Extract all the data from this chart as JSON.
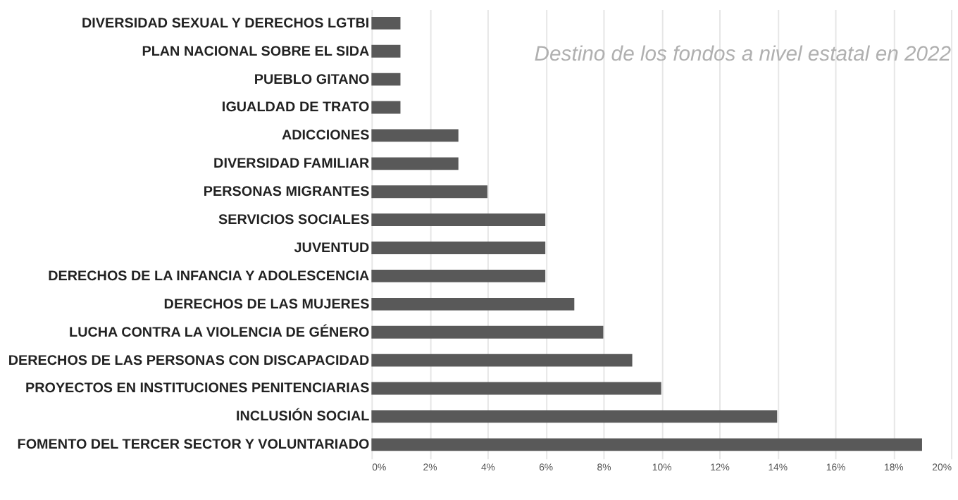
{
  "chart_data": {
    "type": "bar",
    "orientation": "horizontal",
    "title": "Destino de los fondos a nivel estatal en 2022",
    "categories": [
      "DIVERSIDAD SEXUAL Y DERECHOS LGTBI",
      "PLAN NACIONAL SOBRE EL SIDA",
      "PUEBLO GITANO",
      "IGUALDAD DE TRATO",
      "ADICCIONES",
      "DIVERSIDAD FAMILIAR",
      "PERSONAS MIGRANTES",
      "SERVICIOS SOCIALES",
      "JUVENTUD",
      "DERECHOS DE LA INFANCIA Y ADOLESCENCIA",
      "DERECHOS DE LAS MUJERES",
      "LUCHA CONTRA LA VIOLENCIA DE GÉNERO",
      "DERECHOS DE LAS PERSONAS CON DISCAPACIDAD",
      "PROYECTOS EN INSTITUCIONES PENITENCIARIAS",
      "INCLUSIÓN SOCIAL",
      "FOMENTO DEL TERCER SECTOR Y VOLUNTARIADO"
    ],
    "values": [
      1,
      1,
      1,
      1,
      3,
      3,
      4,
      6,
      6,
      6,
      7,
      8,
      9,
      10,
      14,
      19
    ],
    "color": "#595959",
    "xlim": [
      0,
      20
    ],
    "xticks": [
      {
        "value": 0,
        "label": "0%"
      },
      {
        "value": 2,
        "label": "2%"
      },
      {
        "value": 4,
        "label": "4%"
      },
      {
        "value": 6,
        "label": "6%"
      },
      {
        "value": 8,
        "label": "8%"
      },
      {
        "value": 10,
        "label": "10%"
      },
      {
        "value": 12,
        "label": "12%"
      },
      {
        "value": 14,
        "label": "14%"
      },
      {
        "value": 16,
        "label": "16%"
      },
      {
        "value": 18,
        "label": "18%"
      },
      {
        "value": 20,
        "label": "20%"
      }
    ],
    "grid": "x"
  }
}
